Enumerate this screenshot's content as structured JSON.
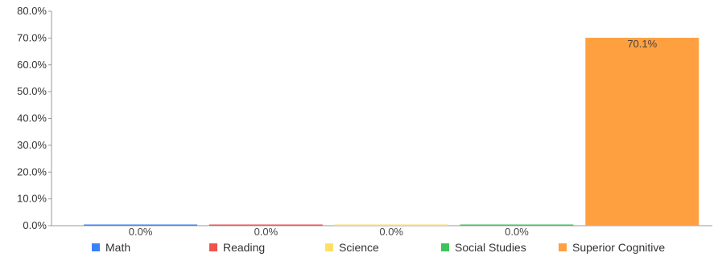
{
  "chart_data": {
    "type": "bar",
    "categories": [
      "Math",
      "Reading",
      "Science",
      "Social Studies",
      "Superior Cognitive"
    ],
    "values": [
      0.0,
      0.0,
      0.0,
      0.0,
      70.1
    ],
    "data_labels": [
      "0.0%",
      "0.0%",
      "0.0%",
      "0.0%",
      "70.1%"
    ],
    "colors": [
      "#3b82f6",
      "#ef5350",
      "#ffe066",
      "#3cc45a",
      "#ffa040"
    ],
    "ylim": [
      0,
      80
    ],
    "yticks": [
      0,
      10,
      20,
      30,
      40,
      50,
      60,
      70,
      80
    ],
    "ytick_labels": [
      "0.0%",
      "10.0%",
      "20.0%",
      "30.0%",
      "40.0%",
      "50.0%",
      "60.0%",
      "70.0%",
      "80.0%"
    ],
    "title": "",
    "xlabel": "",
    "ylabel": "",
    "grid": false,
    "legend_placement": "bottom",
    "legend": [
      "Math",
      "Reading",
      "Science",
      "Social Studies",
      "Superior Cognitive"
    ]
  }
}
